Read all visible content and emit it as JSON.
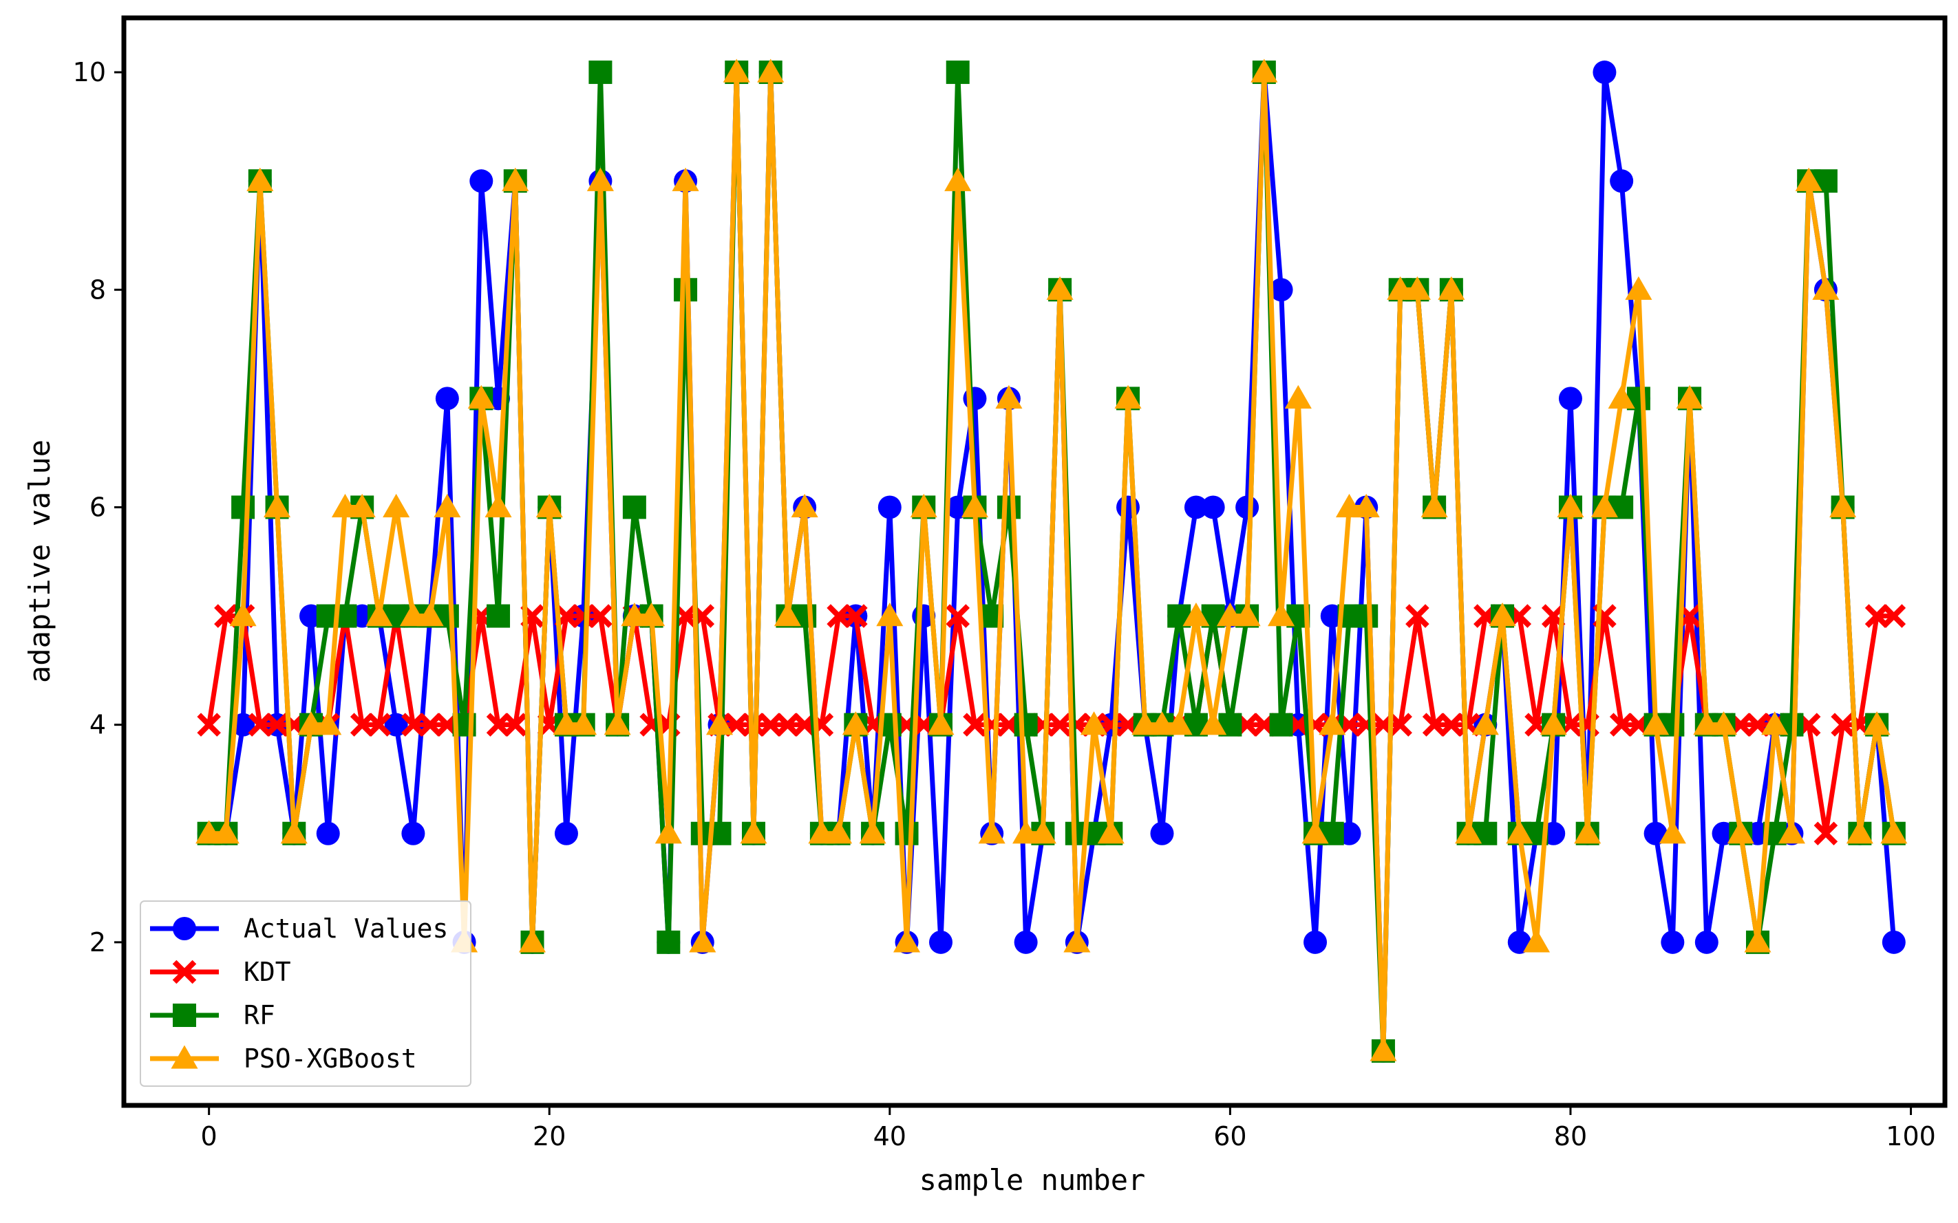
{
  "chart_data": {
    "type": "line",
    "title": "",
    "xlabel": "sample number",
    "ylabel": "adaptive value",
    "xlim": [
      -5,
      102
    ],
    "ylim": [
      0.5,
      10.5
    ],
    "xticks": [
      0,
      20,
      40,
      60,
      80,
      100
    ],
    "xtick_labels": [
      "0",
      "20",
      "40",
      "60",
      "80",
      "100"
    ],
    "yticks": [
      2,
      4,
      6,
      8,
      10
    ],
    "ytick_labels": [
      "2",
      "4",
      "6",
      "8",
      "10"
    ],
    "grid": false,
    "legend_position": "lower-left",
    "x": [
      0,
      1,
      2,
      3,
      4,
      5,
      6,
      7,
      8,
      9,
      10,
      11,
      12,
      13,
      14,
      15,
      16,
      17,
      18,
      19,
      20,
      21,
      22,
      23,
      24,
      25,
      26,
      27,
      28,
      29,
      30,
      31,
      32,
      33,
      34,
      35,
      36,
      37,
      38,
      39,
      40,
      41,
      42,
      43,
      44,
      45,
      46,
      47,
      48,
      49,
      50,
      51,
      52,
      53,
      54,
      55,
      56,
      57,
      58,
      59,
      60,
      61,
      62,
      63,
      64,
      65,
      66,
      67,
      68,
      69,
      70,
      71,
      72,
      73,
      74,
      75,
      76,
      77,
      78,
      79,
      80,
      81,
      82,
      83,
      84,
      85,
      86,
      87,
      88,
      89,
      90,
      91,
      92,
      93,
      94,
      95,
      96,
      97,
      98,
      99
    ],
    "series": [
      {
        "name": "Actual Values",
        "color": "#0000ff",
        "marker": "circle",
        "values": [
          3,
          3,
          4,
          9,
          4,
          3,
          5,
          3,
          5,
          5,
          5,
          4,
          3,
          5,
          7,
          2,
          9,
          7,
          9,
          2,
          6,
          3,
          5,
          9,
          4,
          5,
          5,
          2,
          9,
          2,
          4,
          10,
          3,
          10,
          5,
          6,
          3,
          3,
          5,
          3,
          6,
          2,
          5,
          2,
          6,
          7,
          3,
          7,
          2,
          3,
          8,
          2,
          3,
          4,
          6,
          4,
          3,
          5,
          6,
          6,
          5,
          6,
          10,
          8,
          4,
          2,
          5,
          3,
          6,
          1,
          8,
          8,
          6,
          8,
          3,
          4,
          5,
          2,
          3,
          3,
          7,
          3,
          10,
          9,
          7,
          3,
          2,
          7,
          2,
          3,
          3,
          3,
          4,
          3,
          9,
          8,
          6,
          3,
          4,
          2
        ]
      },
      {
        "name": "KDT",
        "color": "#ff0000",
        "marker": "x",
        "values": [
          4,
          5,
          5,
          4,
          4,
          4,
          4,
          4,
          5,
          4,
          4,
          5,
          4,
          4,
          4,
          4,
          5,
          4,
          4,
          5,
          4,
          5,
          5,
          5,
          4,
          5,
          4,
          4,
          5,
          5,
          4,
          4,
          4,
          4,
          4,
          4,
          4,
          5,
          5,
          4,
          4,
          4,
          4,
          4,
          5,
          4,
          4,
          4,
          4,
          4,
          4,
          4,
          4,
          4,
          4,
          4,
          4,
          4,
          4,
          5,
          4,
          4,
          4,
          4,
          4,
          4,
          4,
          4,
          4,
          4,
          4,
          5,
          4,
          4,
          4,
          5,
          5,
          5,
          4,
          5,
          4,
          4,
          5,
          4,
          4,
          4,
          4,
          5,
          4,
          4,
          4,
          4,
          4,
          4,
          4,
          3,
          4,
          4,
          5,
          5
        ]
      },
      {
        "name": "RF",
        "color": "#008000",
        "marker": "square",
        "values": [
          3,
          3,
          6,
          9,
          6,
          3,
          4,
          5,
          5,
          6,
          5,
          5,
          5,
          5,
          5,
          4,
          7,
          5,
          9,
          2,
          6,
          4,
          4,
          10,
          4,
          6,
          5,
          2,
          8,
          3,
          3,
          10,
          3,
          10,
          5,
          5,
          3,
          3,
          4,
          3,
          4,
          3,
          6,
          4,
          10,
          6,
          5,
          6,
          4,
          3,
          8,
          3,
          3,
          3,
          7,
          4,
          4,
          5,
          4,
          5,
          4,
          5,
          10,
          4,
          5,
          3,
          3,
          5,
          5,
          1,
          8,
          8,
          6,
          8,
          3,
          3,
          5,
          3,
          3,
          4,
          6,
          3,
          6,
          6,
          7,
          4,
          4,
          7,
          4,
          4,
          3,
          2,
          3,
          4,
          9,
          9,
          6,
          3,
          4,
          3
        ]
      },
      {
        "name": "PSO-XGBoost",
        "color": "#ffa500",
        "marker": "triangle",
        "values": [
          3,
          3,
          5,
          9,
          6,
          3,
          4,
          4,
          6,
          6,
          5,
          6,
          5,
          5,
          6,
          2,
          7,
          6,
          9,
          2,
          6,
          4,
          4,
          9,
          4,
          5,
          5,
          3,
          9,
          2,
          4,
          10,
          3,
          10,
          5,
          6,
          3,
          3,
          4,
          3,
          5,
          2,
          6,
          4,
          9,
          6,
          3,
          7,
          3,
          3,
          8,
          2,
          4,
          3,
          7,
          4,
          4,
          4,
          5,
          4,
          5,
          5,
          10,
          5,
          7,
          3,
          4,
          6,
          6,
          1,
          8,
          8,
          6,
          8,
          3,
          4,
          5,
          3,
          2,
          4,
          6,
          3,
          6,
          7,
          8,
          4,
          3,
          7,
          4,
          4,
          3,
          2,
          4,
          3,
          9,
          8,
          6,
          3,
          4,
          3
        ]
      }
    ]
  }
}
